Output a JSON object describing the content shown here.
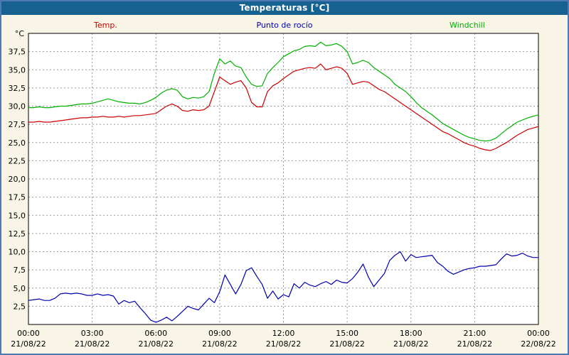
{
  "window": {
    "title": "Temperaturas [°C]"
  },
  "colors": {
    "titlebar_bg": "#15618f",
    "frame_border": "#4e79b2",
    "page_bg": "#f8f4e6",
    "plot_bg": "#ffffff",
    "grid": "#999999",
    "axis": "#000000",
    "temp": "#cc0000",
    "dew": "#0000b0",
    "windchill": "#00b000"
  },
  "legend": [
    {
      "label": "Temp.",
      "color": "#cc0000"
    },
    {
      "label": "Punto de rocío",
      "color": "#0000b0"
    },
    {
      "label": "Windchill",
      "color": "#00b000"
    }
  ],
  "chart_data": {
    "type": "line",
    "title": "Temperaturas [°C]",
    "ylabel": "°C",
    "xlim": [
      0,
      24
    ],
    "ylim": [
      0,
      40
    ],
    "grid": true,
    "x_start": 0,
    "x_step": 0.25,
    "x_ticks": {
      "hours": [
        0,
        3,
        6,
        9,
        12,
        15,
        18,
        21,
        24
      ],
      "time_labels": [
        "00:00",
        "03:00",
        "06:00",
        "09:00",
        "12:00",
        "15:00",
        "18:00",
        "21:00",
        "00:00"
      ],
      "date_labels": [
        "21/08/22",
        "21/08/22",
        "21/08/22",
        "21/08/22",
        "21/08/22",
        "21/08/22",
        "21/08/22",
        "21/08/22",
        "22/08/22"
      ]
    },
    "y_ticks": {
      "values": [
        2.5,
        5,
        7.5,
        10,
        12.5,
        15,
        17.5,
        20,
        22.5,
        25,
        27.5,
        30,
        32.5,
        35,
        37.5
      ],
      "labels": [
        "2,5",
        "5,0",
        "7,5",
        "10,0",
        "12,5",
        "15,0",
        "17,5",
        "20,0",
        "22,5",
        "25,0",
        "27,5",
        "30,0",
        "32,5",
        "35,0",
        "37,5"
      ]
    },
    "series": [
      {
        "name": "Temp.",
        "color": "#cc0000",
        "values": [
          27.8,
          27.8,
          27.9,
          27.8,
          27.8,
          27.9,
          28.0,
          28.1,
          28.2,
          28.3,
          28.4,
          28.4,
          28.5,
          28.5,
          28.6,
          28.5,
          28.5,
          28.6,
          28.5,
          28.6,
          28.7,
          28.7,
          28.8,
          28.9,
          29.0,
          29.5,
          30.0,
          30.3,
          30.0,
          29.4,
          29.3,
          29.5,
          29.4,
          29.5,
          30.0,
          32.0,
          34.0,
          33.5,
          33.0,
          33.3,
          33.5,
          32.5,
          30.5,
          29.9,
          29.9,
          32.0,
          32.8,
          33.2,
          33.8,
          34.3,
          34.8,
          35.0,
          35.2,
          35.3,
          35.2,
          35.8,
          35.0,
          35.2,
          35.4,
          35.2,
          34.5,
          33.0,
          33.2,
          33.4,
          33.3,
          32.8,
          32.3,
          32.0,
          31.5,
          31.0,
          30.5,
          30.0,
          29.5,
          29.0,
          28.5,
          28.0,
          27.5,
          27.0,
          26.5,
          26.2,
          25.8,
          25.4,
          25.0,
          24.7,
          24.5,
          24.2,
          24.0,
          23.9,
          24.2,
          24.6,
          25.0,
          25.5,
          26.0,
          26.4,
          26.8,
          27.0,
          27.2
        ]
      },
      {
        "name": "Punto de rocío",
        "color": "#0000b0",
        "values": [
          3.3,
          3.4,
          3.5,
          3.3,
          3.3,
          3.6,
          4.2,
          4.3,
          4.2,
          4.3,
          4.2,
          4.0,
          4.0,
          4.2,
          4.0,
          4.1,
          3.9,
          2.8,
          3.3,
          3.0,
          3.2,
          2.3,
          1.5,
          0.6,
          0.3,
          0.6,
          1.0,
          0.5,
          1.1,
          1.8,
          2.5,
          2.2,
          2.0,
          2.8,
          3.6,
          3.0,
          4.5,
          6.8,
          5.5,
          4.2,
          5.5,
          7.4,
          7.8,
          6.6,
          5.5,
          3.6,
          4.6,
          3.5,
          4.1,
          3.8,
          5.6,
          5.0,
          5.8,
          5.4,
          5.2,
          5.6,
          5.9,
          5.5,
          6.1,
          5.8,
          5.7,
          6.3,
          7.2,
          8.3,
          6.5,
          5.2,
          6.1,
          7.0,
          8.8,
          9.5,
          10.0,
          8.7,
          9.6,
          9.2,
          9.3,
          9.4,
          9.5,
          8.5,
          8.0,
          7.3,
          6.9,
          7.2,
          7.5,
          7.7,
          7.8,
          8.0,
          8.0,
          8.1,
          8.2,
          9.0,
          9.7,
          9.4,
          9.5,
          9.8,
          9.4,
          9.2,
          9.2
        ]
      },
      {
        "name": "Windchill",
        "color": "#00b000",
        "values": [
          29.8,
          29.8,
          29.9,
          29.8,
          29.8,
          29.9,
          30.0,
          30.0,
          30.1,
          30.2,
          30.3,
          30.3,
          30.4,
          30.6,
          30.8,
          31.0,
          30.8,
          30.6,
          30.5,
          30.4,
          30.4,
          30.3,
          30.5,
          30.8,
          31.2,
          31.8,
          32.2,
          32.4,
          32.2,
          31.3,
          31.0,
          31.2,
          31.1,
          31.3,
          32.0,
          34.5,
          36.5,
          35.8,
          36.2,
          35.5,
          35.3,
          34.0,
          33.0,
          32.7,
          32.8,
          34.5,
          35.3,
          36.0,
          36.8,
          37.2,
          37.6,
          37.8,
          38.2,
          38.3,
          38.2,
          38.8,
          38.3,
          38.4,
          38.6,
          38.2,
          37.5,
          35.8,
          36.0,
          36.3,
          36.0,
          35.3,
          34.8,
          34.3,
          33.8,
          33.0,
          32.5,
          32.0,
          31.3,
          30.5,
          29.8,
          29.3,
          28.8,
          28.2,
          27.6,
          27.2,
          26.8,
          26.4,
          26.0,
          25.7,
          25.5,
          25.3,
          25.2,
          25.3,
          25.6,
          26.2,
          26.8,
          27.3,
          27.8,
          28.1,
          28.4,
          28.6,
          28.8
        ]
      }
    ]
  }
}
